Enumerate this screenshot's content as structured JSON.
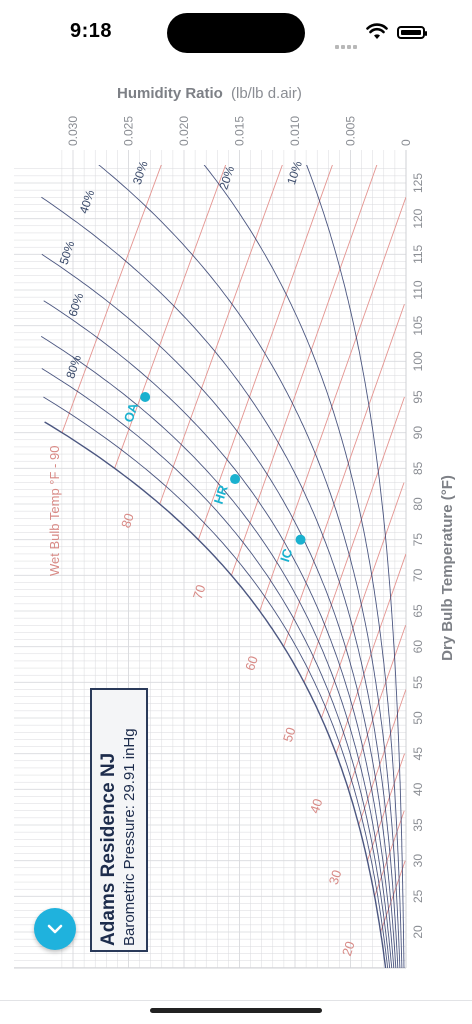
{
  "status_bar": {
    "time": "9:18"
  },
  "header": {
    "title_bold": "Humidity Ratio",
    "title_unit": "(lb/lb d.air)"
  },
  "info_box": {
    "title": "Adams Residence NJ",
    "subtitle": "Barometric Pressure: 29.91 inHg"
  },
  "colors": {
    "rh_line": "#2d3a6b",
    "wb_line": "#e49490",
    "grid": "#d9dadd",
    "point": "#1ab1cf",
    "fab": "#1fb2dd"
  },
  "chart_data": {
    "type": "scatter",
    "title": "",
    "xlabel": "Dry Bulb Temperature (°F)",
    "ylabel": "Humidity Ratio (lb/lb d.air)",
    "x_ticks": [
      20,
      25,
      30,
      35,
      40,
      45,
      50,
      55,
      60,
      65,
      70,
      75,
      80,
      85,
      90,
      95,
      100,
      105,
      110,
      115,
      120,
      125
    ],
    "y_ticks": [
      "0",
      "0.005",
      "0.010",
      "0.015",
      "0.020",
      "0.025",
      "0.030"
    ],
    "xlim": [
      16,
      129
    ],
    "ylim": [
      0,
      0.031
    ],
    "rh_curves": [
      10,
      20,
      30,
      40,
      50,
      60,
      70,
      80,
      90,
      100
    ],
    "rh_labels": [
      "10%",
      "20%",
      "30%",
      "40%",
      "50%",
      "60%",
      "80%"
    ],
    "wb_lines": [
      20,
      25,
      30,
      35,
      40,
      45,
      50,
      55,
      60,
      65,
      70,
      75,
      80,
      85,
      90
    ],
    "wb_labels": [
      "20",
      "30",
      "40",
      "50",
      "60",
      "70",
      "80"
    ],
    "wb_axis_label": "Wet Bulb Temp °F - 90",
    "points": [
      {
        "label": "OA",
        "x": 95,
        "y": 0.0235
      },
      {
        "label": "HR",
        "x": 83.5,
        "y": 0.0154
      },
      {
        "label": "IC",
        "x": 75,
        "y": 0.0095
      }
    ]
  }
}
